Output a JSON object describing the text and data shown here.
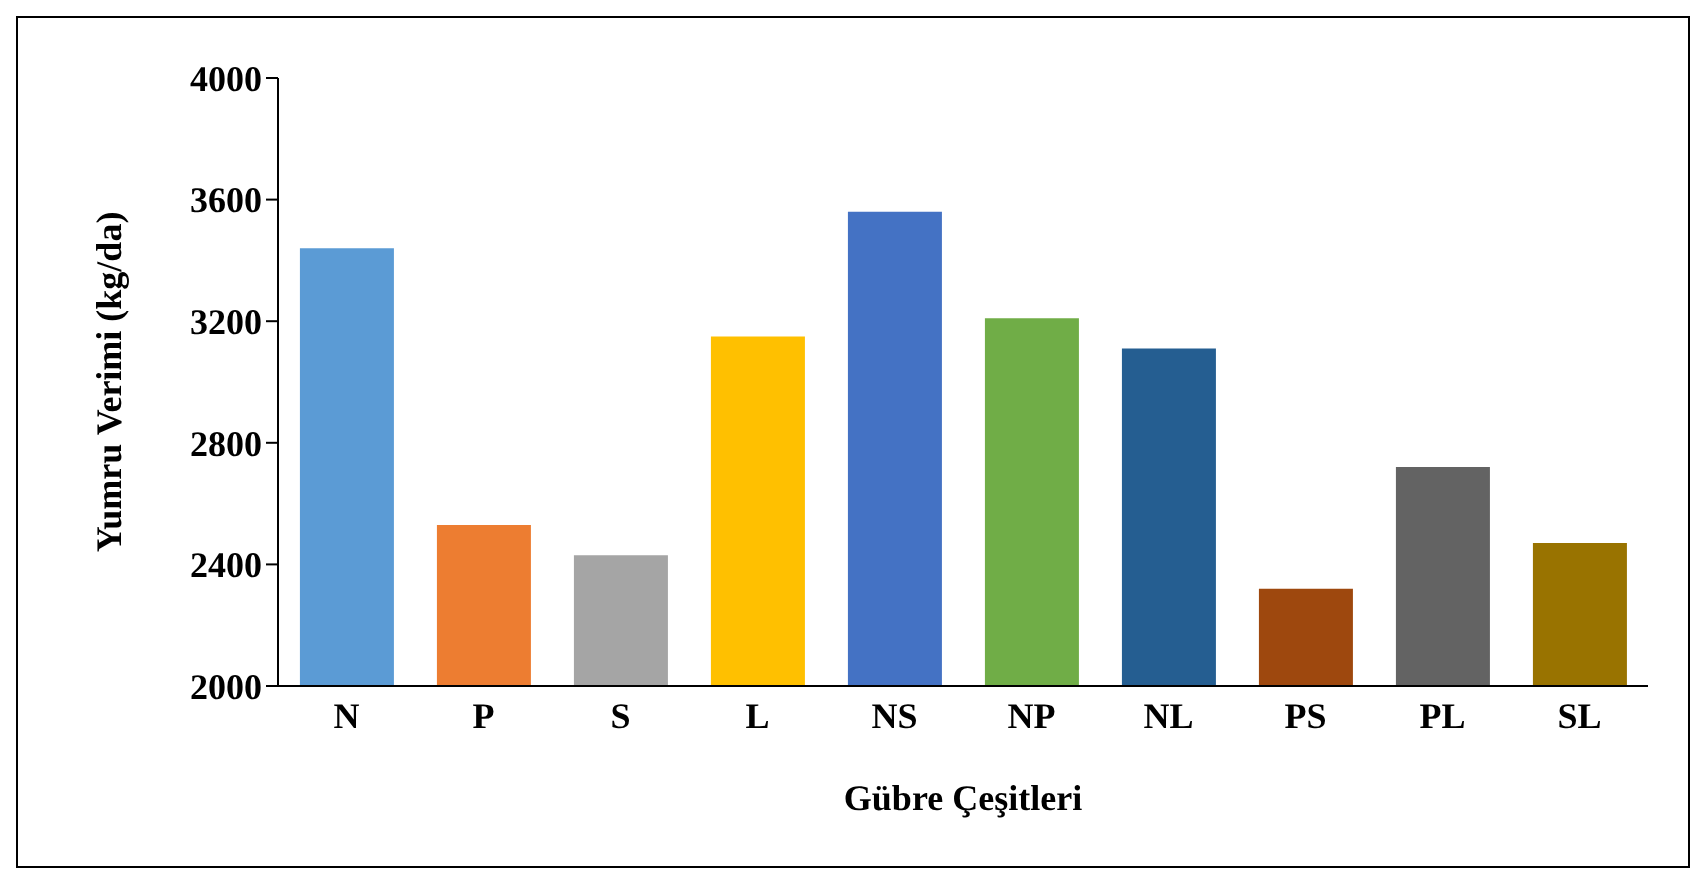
{
  "chart_data": {
    "type": "bar",
    "xlabel": "Gübre Çeşitleri",
    "ylabel": "Yumru Verimi (kg/da)",
    "categories": [
      "N",
      "P",
      "S",
      "L",
      "NS",
      "NP",
      "NL",
      "PS",
      "PL",
      "SL"
    ],
    "values": [
      3440,
      2530,
      2430,
      3150,
      3560,
      3210,
      3110,
      2320,
      2720,
      2470
    ],
    "colors": [
      "#5b9bd5",
      "#ed7d31",
      "#a5a5a5",
      "#ffc000",
      "#4472c4",
      "#70ad47",
      "#255e91",
      "#9e480e",
      "#636363",
      "#997300"
    ],
    "ylim": [
      2000,
      4000
    ],
    "yticks": [
      2000,
      2400,
      2800,
      3200,
      3600,
      4000
    ],
    "grid": false,
    "legend": false
  }
}
